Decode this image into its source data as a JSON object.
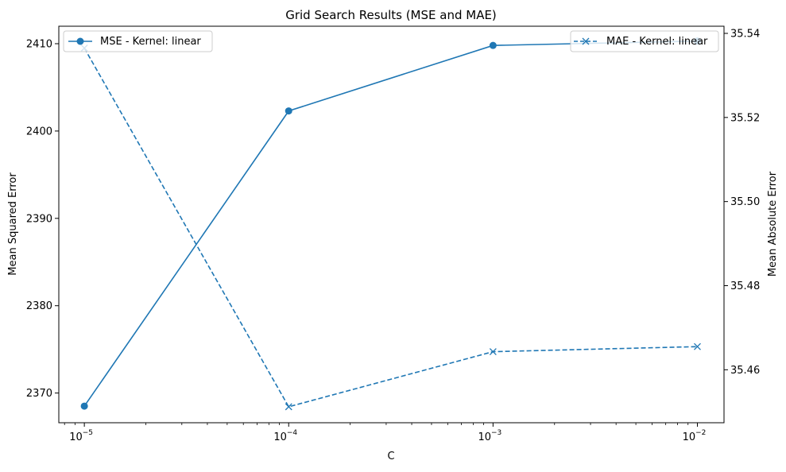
{
  "chart_data": {
    "type": "line",
    "title": "Grid Search Results (MSE and MAE)",
    "xlabel": "C",
    "ylabel_left": "Mean Squared Error",
    "ylabel_right": "Mean Absolute Error",
    "x_scale": "log",
    "x": [
      1e-05,
      0.0001,
      0.001,
      0.01
    ],
    "x_ticks": [
      {
        "value": 1e-05,
        "base": "10",
        "exp": "−5"
      },
      {
        "value": 0.0001,
        "base": "10",
        "exp": "−4"
      },
      {
        "value": 0.001,
        "base": "10",
        "exp": "−3"
      },
      {
        "value": 0.01,
        "base": "10",
        "exp": "−2"
      }
    ],
    "xlim": [
      7.5e-06,
      0.0135
    ],
    "ylim_left": [
      2366.6,
      2412.0
    ],
    "ylim_right": [
      35.4474,
      35.5417
    ],
    "yticks_left": [
      2370,
      2380,
      2390,
      2400,
      2410
    ],
    "yticks_left_labels": [
      "2370",
      "2380",
      "2390",
      "2400",
      "2410"
    ],
    "yticks_right": [
      35.46,
      35.48,
      35.5,
      35.52,
      35.54
    ],
    "yticks_right_labels": [
      "35.46",
      "35.48",
      "35.50",
      "35.52",
      "35.54"
    ],
    "grid": false,
    "series": [
      {
        "name": "MSE - Kernel: linear",
        "axis": "left",
        "values": [
          2368.5,
          2402.3,
          2409.8,
          2410.3
        ],
        "color": "#1f77b4",
        "line_style": "solid",
        "marker": "circle",
        "legend_position": "top-left"
      },
      {
        "name": "MAE - Kernel: linear",
        "axis": "right",
        "values": [
          35.5365,
          35.4512,
          35.4643,
          35.4655
        ],
        "color": "#1f77b4",
        "line_style": "dashed",
        "marker": "x",
        "legend_position": "top-right"
      }
    ]
  }
}
